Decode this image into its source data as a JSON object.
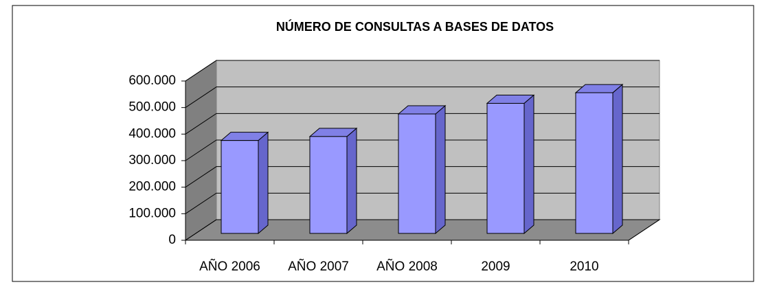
{
  "chart_data": {
    "type": "bar3d",
    "title": "NÚMERO DE CONSULTAS A BASES DE DATOS",
    "categories": [
      "AÑO 2006",
      "AÑO 2007",
      "AÑO 2008",
      "2009",
      "2010"
    ],
    "values": [
      350000,
      365000,
      450000,
      490000,
      530000
    ],
    "color": "#9999ff",
    "ylim": [
      0,
      600000
    ],
    "yticks": [
      0,
      {
        "value": 100000,
        "label": "100.000"
      },
      {
        "value": 200000,
        "label": "200.000"
      },
      {
        "value": 300000,
        "label": "300.000"
      },
      {
        "value": 400000,
        "label": "400.000"
      },
      {
        "value": 500000,
        "label": "500.000"
      },
      {
        "value": 600000,
        "label": "600.000"
      }
    ],
    "grid": true
  }
}
